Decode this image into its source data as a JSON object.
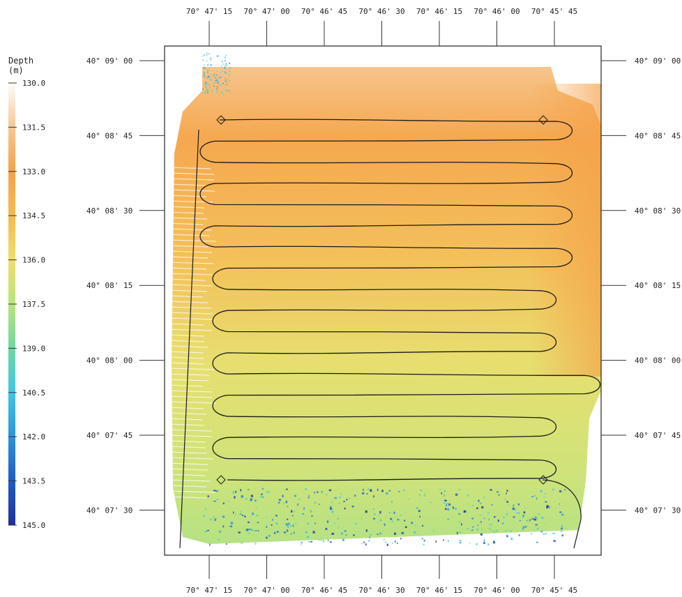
{
  "colorbar": {
    "title_line1": "Depth",
    "title_line2": "(m)",
    "tick_labels": [
      "130.0",
      "131.5",
      "133.0",
      "134.5",
      "136.0",
      "137.5",
      "139.0",
      "140.5",
      "142.0",
      "143.5",
      "145.0"
    ],
    "stops": [
      {
        "depth": 130.0,
        "color": "#fdfdfd"
      },
      {
        "depth": 131.5,
        "color": "#f6c793"
      },
      {
        "depth": 133.0,
        "color": "#f5a24a"
      },
      {
        "depth": 134.5,
        "color": "#f6bb52"
      },
      {
        "depth": 136.0,
        "color": "#eede6b"
      },
      {
        "depth": 137.5,
        "color": "#b9e47f"
      },
      {
        "depth": 139.0,
        "color": "#71d6a2"
      },
      {
        "depth": 140.5,
        "color": "#40c6e3"
      },
      {
        "depth": 142.0,
        "color": "#2b93da"
      },
      {
        "depth": 143.5,
        "color": "#1f5cc5"
      },
      {
        "depth": 145.0,
        "color": "#1f2f9a"
      }
    ]
  },
  "longitude_labels": [
    "70° 47' 15",
    "70° 47' 00",
    "70° 46' 45",
    "70° 46' 30",
    "70° 46' 15",
    "70° 46' 00",
    "70° 45' 45"
  ],
  "latitude_labels": [
    "40° 09' 00",
    "40° 08' 45",
    "40° 08' 30",
    "40° 08' 15",
    "40° 08' 00",
    "40° 07' 45",
    "40° 07' 30"
  ],
  "track": {
    "color": "#1a1a1a",
    "survey_lines": 18,
    "corner_markers": 4
  }
}
